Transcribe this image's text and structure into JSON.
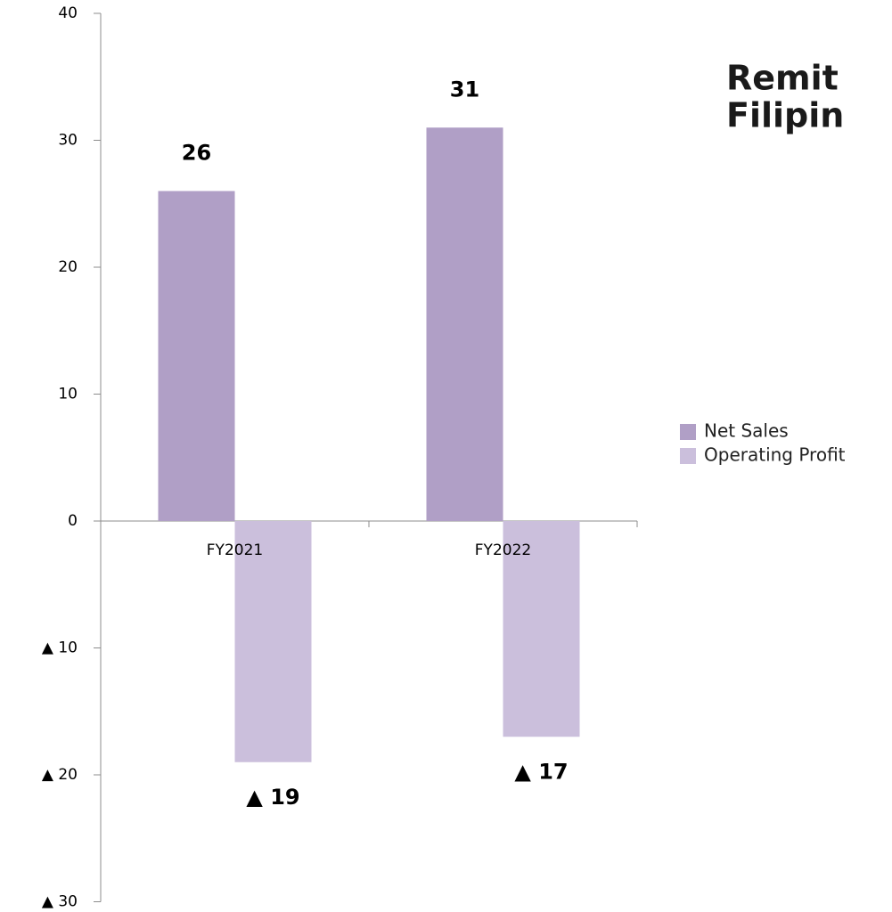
{
  "chart_data": {
    "type": "bar",
    "title": [
      "Remit",
      "Filipin"
    ],
    "categories": [
      "FY2021",
      "FY2022"
    ],
    "series": [
      {
        "name": "Net Sales",
        "color": "#b09fc6",
        "values": [
          26,
          31
        ]
      },
      {
        "name": "Operating Profit",
        "color": "#cbbfdc",
        "values": [
          -19,
          -17
        ],
        "value_labels": [
          "▲ 19",
          "▲ 17"
        ]
      }
    ],
    "ylim": [
      -30,
      40
    ],
    "yticks": [
      {
        "value": -30,
        "label": "▲ 30"
      },
      {
        "value": -20,
        "label": "▲ 20"
      },
      {
        "value": -10,
        "label": "▲ 10"
      },
      0,
      10,
      20,
      30,
      40
    ],
    "legend": "right"
  }
}
